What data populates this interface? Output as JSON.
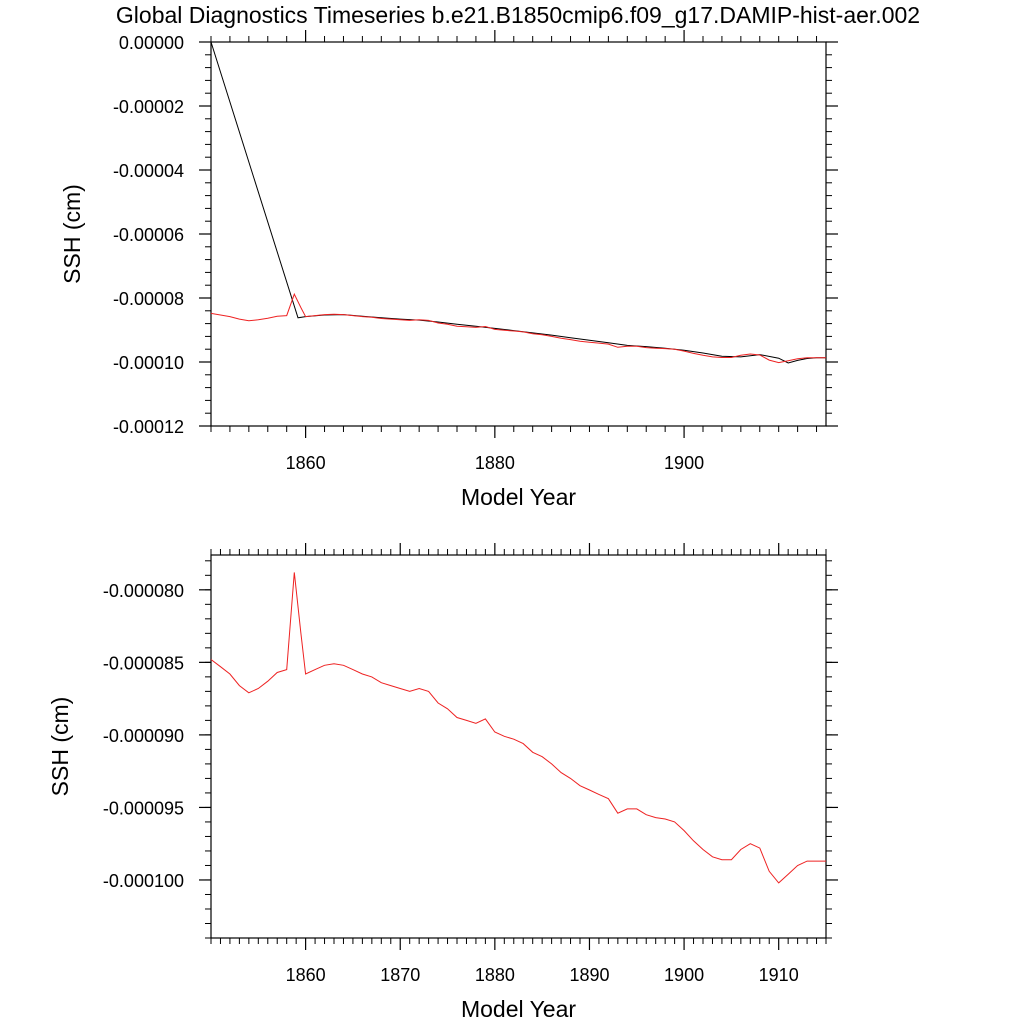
{
  "title": "Global Diagnostics Timeseries b.e21.B1850cmip6.f09_g17.DAMIP-hist-aer.002",
  "colors": {
    "series_red": "#ee2222",
    "series_black": "#000000",
    "axis": "#000000"
  },
  "chart_data": [
    {
      "type": "line",
      "xlabel": "Model Year",
      "ylabel": "SSH (cm)",
      "xlim": [
        1850,
        1915
      ],
      "ylim": [
        -0.00012,
        0
      ],
      "x_ticks": [
        1860,
        1880,
        1900
      ],
      "x_tick_labels": [
        "1860",
        "1880",
        "1900"
      ],
      "y_ticks": [
        0,
        -2e-05,
        -4e-05,
        -6e-05,
        -8e-05,
        -0.0001,
        -0.00012
      ],
      "y_tick_labels": [
        "0.00000",
        "-0.00002",
        "-0.00004",
        "-0.00006",
        "-0.00008",
        "-0.00010",
        "-0.00012"
      ],
      "grid": false,
      "series": [
        {
          "color": "#000000",
          "x": [
            1850,
            1859.2,
            1860,
            1862,
            1864,
            1866,
            1868,
            1870,
            1872,
            1874,
            1876,
            1878,
            1880,
            1882,
            1884,
            1886,
            1888,
            1890,
            1892,
            1894,
            1896,
            1898,
            1900,
            1902,
            1904,
            1906,
            1908,
            1910,
            1911,
            1912,
            1913,
            1914,
            1915
          ],
          "y": [
            0,
            -8.62e-05,
            -8.58e-05,
            -8.53e-05,
            -8.52e-05,
            -8.57e-05,
            -8.62e-05,
            -8.66e-05,
            -8.69e-05,
            -8.75e-05,
            -8.82e-05,
            -8.88e-05,
            -8.95e-05,
            -9.02e-05,
            -9.09e-05,
            -9.16e-05,
            -9.24e-05,
            -9.32e-05,
            -9.4e-05,
            -9.48e-05,
            -9.52e-05,
            -9.57e-05,
            -9.63e-05,
            -9.72e-05,
            -9.82e-05,
            -9.84e-05,
            -9.77e-05,
            -9.88e-05,
            -0.0001003,
            -9.95e-05,
            -9.89e-05,
            -9.87e-05,
            -9.87e-05
          ]
        },
        {
          "color": "#ee2222",
          "x": [
            1850,
            1851,
            1852,
            1853,
            1854,
            1855,
            1856,
            1857,
            1858,
            1858.8,
            1859.5,
            1860,
            1861,
            1862,
            1863,
            1864,
            1865,
            1866,
            1867,
            1868,
            1869,
            1870,
            1871,
            1872,
            1873,
            1874,
            1875,
            1876,
            1877,
            1878,
            1879,
            1880,
            1881,
            1882,
            1883,
            1884,
            1885,
            1886,
            1887,
            1888,
            1889,
            1890,
            1891,
            1892,
            1893,
            1894,
            1895,
            1896,
            1897,
            1898,
            1899,
            1900,
            1901,
            1902,
            1903,
            1904,
            1905,
            1906,
            1907,
            1908,
            1909,
            1910,
            1911,
            1912,
            1913,
            1914,
            1915
          ],
          "y": [
            -8.48e-05,
            -8.53e-05,
            -8.58e-05,
            -8.66e-05,
            -8.71e-05,
            -8.68e-05,
            -8.63e-05,
            -8.57e-05,
            -8.55e-05,
            -7.88e-05,
            -8.3e-05,
            -8.58e-05,
            -8.55e-05,
            -8.52e-05,
            -8.51e-05,
            -8.52e-05,
            -8.55e-05,
            -8.58e-05,
            -8.6e-05,
            -8.64e-05,
            -8.66e-05,
            -8.68e-05,
            -8.7e-05,
            -8.68e-05,
            -8.7e-05,
            -8.78e-05,
            -8.82e-05,
            -8.88e-05,
            -8.9e-05,
            -8.92e-05,
            -8.89e-05,
            -8.98e-05,
            -9.01e-05,
            -9.03e-05,
            -9.06e-05,
            -9.12e-05,
            -9.15e-05,
            -9.2e-05,
            -9.26e-05,
            -9.3e-05,
            -9.35e-05,
            -9.38e-05,
            -9.41e-05,
            -9.44e-05,
            -9.54e-05,
            -9.51e-05,
            -9.51e-05,
            -9.55e-05,
            -9.57e-05,
            -9.58e-05,
            -9.6e-05,
            -9.66e-05,
            -9.73e-05,
            -9.79e-05,
            -9.84e-05,
            -9.86e-05,
            -9.86e-05,
            -9.79e-05,
            -9.75e-05,
            -9.78e-05,
            -9.94e-05,
            -0.0001002,
            -9.96e-05,
            -9.9e-05,
            -9.87e-05,
            -9.87e-05,
            -9.87e-05
          ]
        }
      ]
    },
    {
      "type": "line",
      "xlabel": "Model Year",
      "ylabel": "SSH (cm)",
      "xlim": [
        1850,
        1915
      ],
      "ylim": [
        -0.000104,
        -7.76e-05
      ],
      "x_ticks": [
        1860,
        1870,
        1880,
        1890,
        1900,
        1910
      ],
      "x_tick_labels": [
        "1860",
        "1870",
        "1880",
        "1890",
        "1900",
        "1910"
      ],
      "y_ticks": [
        -8e-05,
        -8.5e-05,
        -9e-05,
        -9.5e-05,
        -0.0001
      ],
      "y_tick_labels": [
        "-0.000080",
        "-0.000085",
        "-0.000090",
        "-0.000095",
        "-0.000100"
      ],
      "grid": false,
      "series": [
        {
          "color": "#ee2222",
          "x": [
            1850,
            1851,
            1852,
            1853,
            1854,
            1855,
            1856,
            1857,
            1858,
            1858.8,
            1859.5,
            1860,
            1861,
            1862,
            1863,
            1864,
            1865,
            1866,
            1867,
            1868,
            1869,
            1870,
            1871,
            1872,
            1873,
            1874,
            1875,
            1876,
            1877,
            1878,
            1879,
            1880,
            1881,
            1882,
            1883,
            1884,
            1885,
            1886,
            1887,
            1888,
            1889,
            1890,
            1891,
            1892,
            1893,
            1894,
            1895,
            1896,
            1897,
            1898,
            1899,
            1900,
            1901,
            1902,
            1903,
            1904,
            1905,
            1906,
            1907,
            1908,
            1909,
            1910,
            1911,
            1912,
            1913,
            1914,
            1915
          ],
          "y": [
            -8.48e-05,
            -8.53e-05,
            -8.58e-05,
            -8.66e-05,
            -8.71e-05,
            -8.68e-05,
            -8.63e-05,
            -8.57e-05,
            -8.55e-05,
            -7.88e-05,
            -8.3e-05,
            -8.58e-05,
            -8.55e-05,
            -8.52e-05,
            -8.51e-05,
            -8.52e-05,
            -8.55e-05,
            -8.58e-05,
            -8.6e-05,
            -8.64e-05,
            -8.66e-05,
            -8.68e-05,
            -8.7e-05,
            -8.68e-05,
            -8.7e-05,
            -8.78e-05,
            -8.82e-05,
            -8.88e-05,
            -8.9e-05,
            -8.92e-05,
            -8.89e-05,
            -8.98e-05,
            -9.01e-05,
            -9.03e-05,
            -9.06e-05,
            -9.12e-05,
            -9.15e-05,
            -9.2e-05,
            -9.26e-05,
            -9.3e-05,
            -9.35e-05,
            -9.38e-05,
            -9.41e-05,
            -9.44e-05,
            -9.54e-05,
            -9.51e-05,
            -9.51e-05,
            -9.55e-05,
            -9.57e-05,
            -9.58e-05,
            -9.6e-05,
            -9.66e-05,
            -9.73e-05,
            -9.79e-05,
            -9.84e-05,
            -9.86e-05,
            -9.86e-05,
            -9.79e-05,
            -9.75e-05,
            -9.78e-05,
            -9.94e-05,
            -0.0001002,
            -9.96e-05,
            -9.9e-05,
            -9.87e-05,
            -9.87e-05,
            -9.87e-05
          ]
        }
      ]
    }
  ]
}
